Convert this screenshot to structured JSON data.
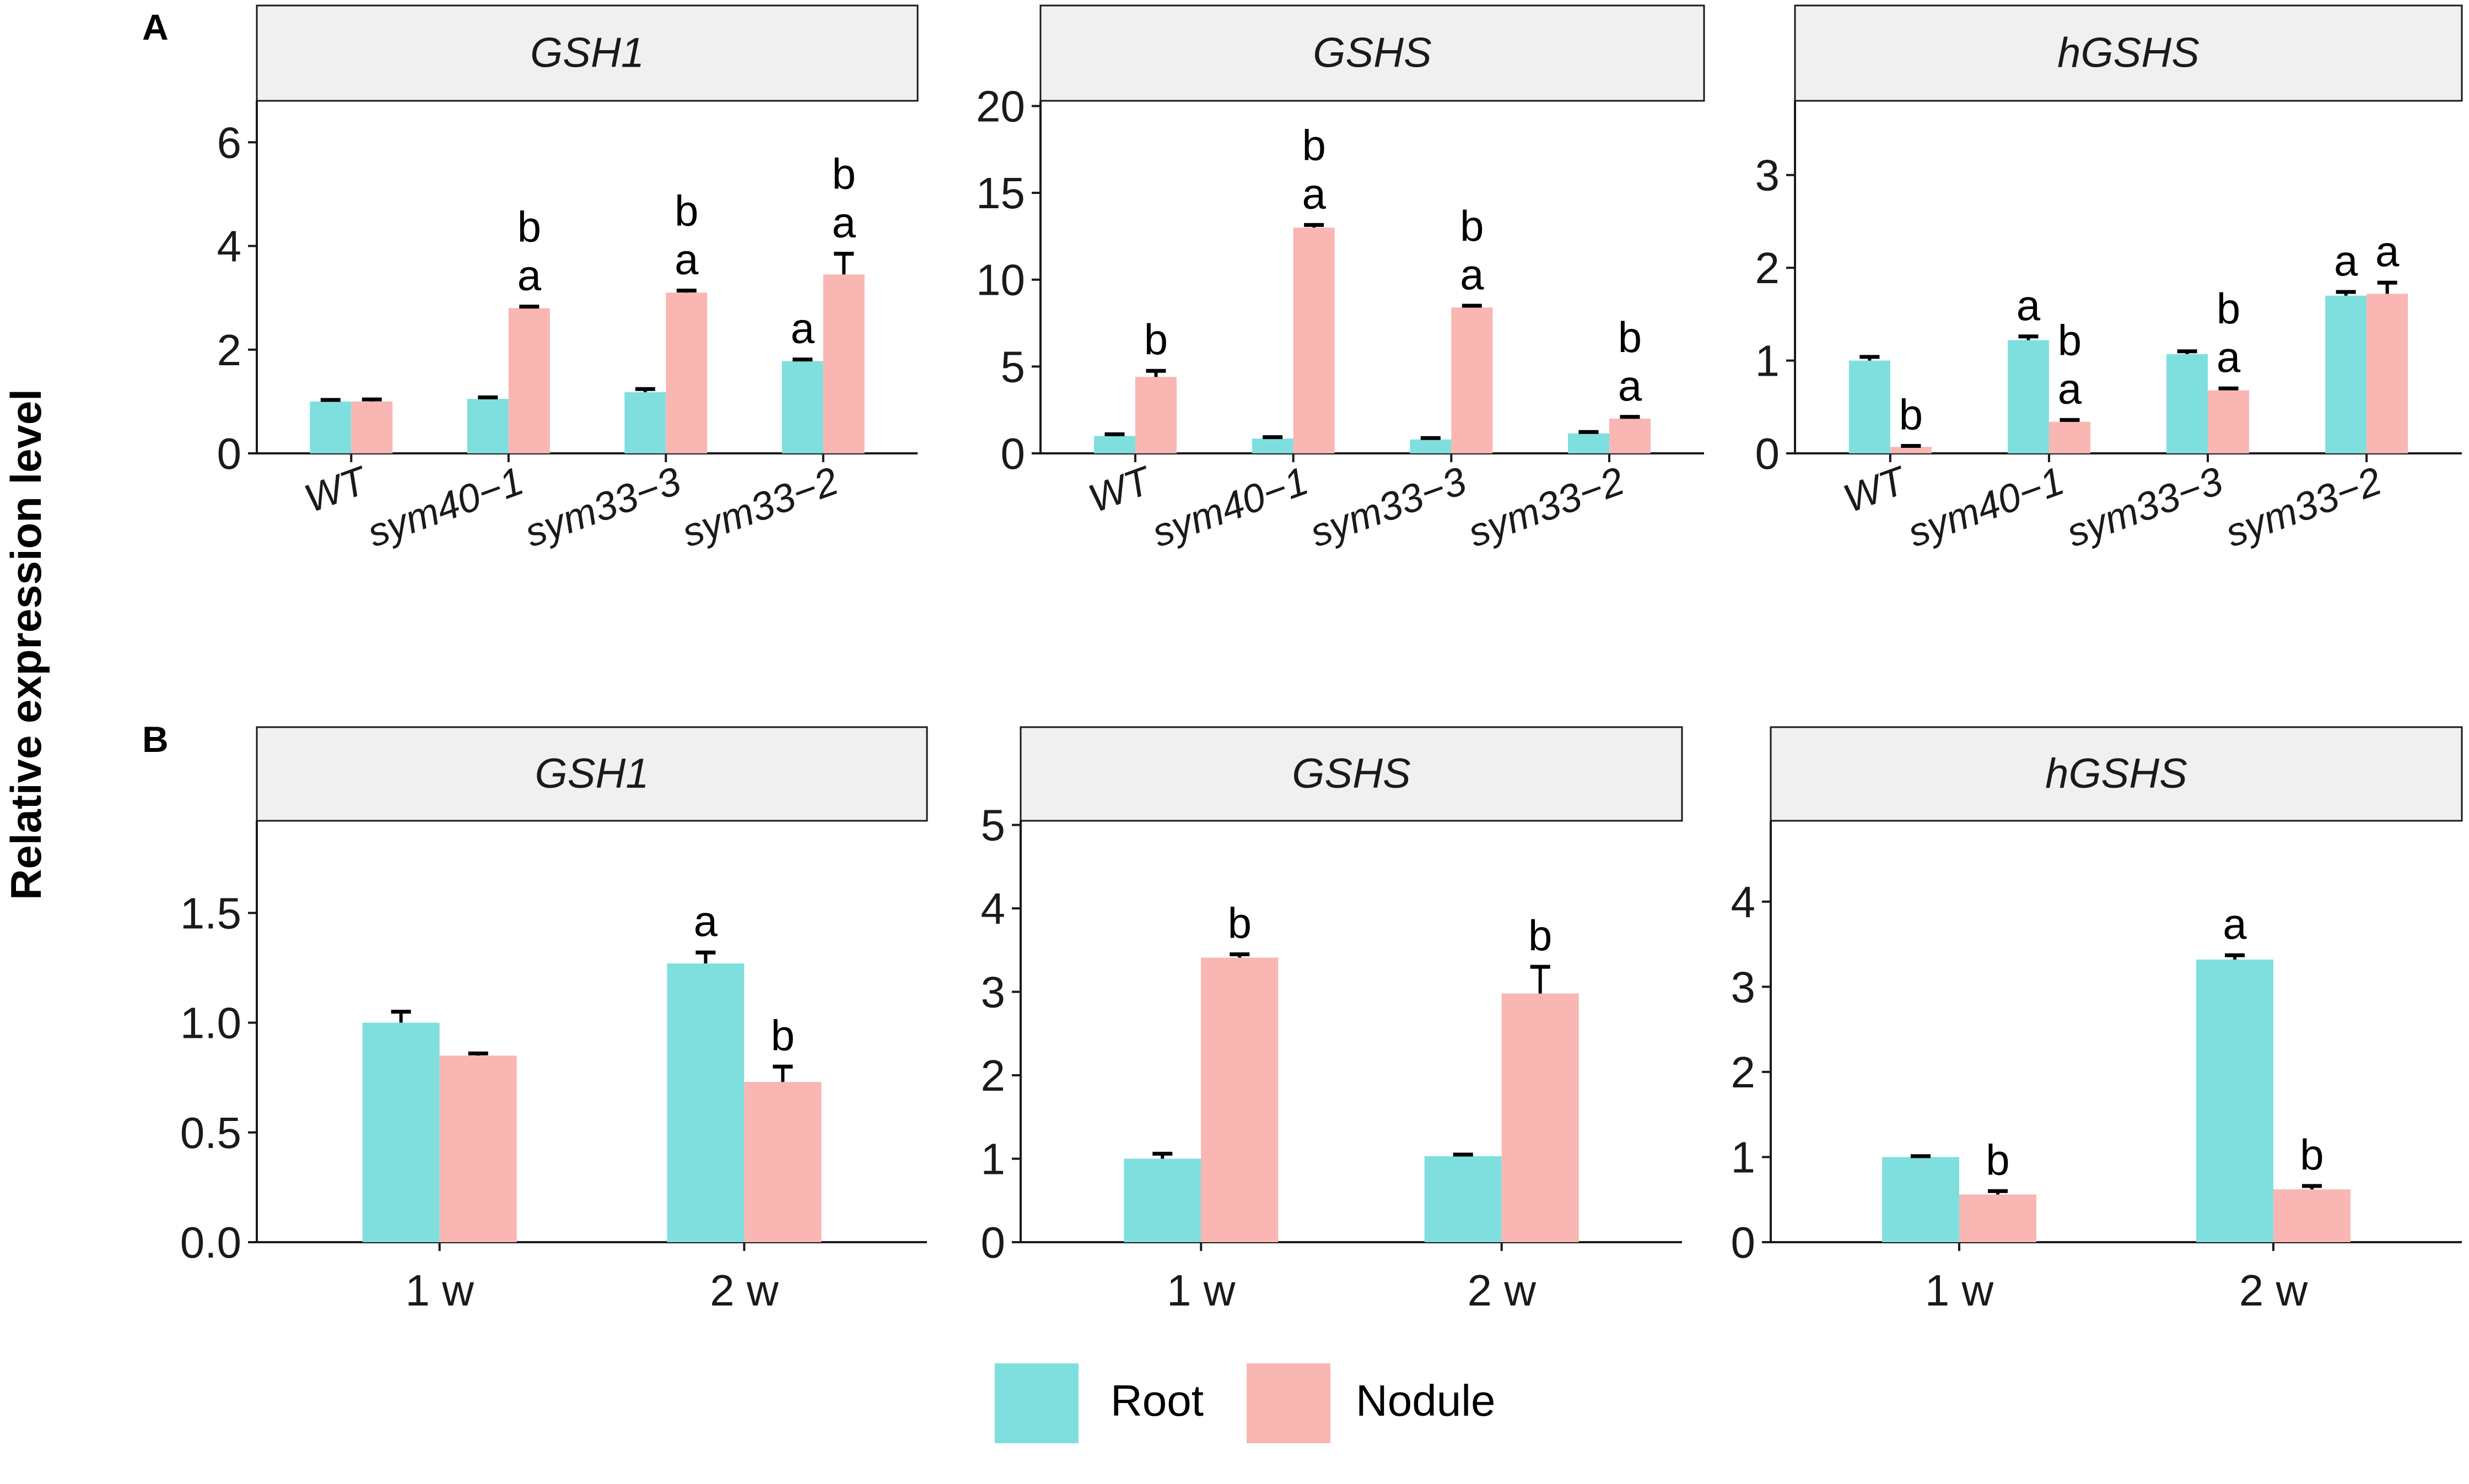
{
  "figure": {
    "y_axis_label": "Relative expression level",
    "colors": {
      "root": "#7fdfdf",
      "nodule": "#f9b6b2",
      "strip": "#f0f0f0"
    }
  },
  "legend": {
    "items": [
      {
        "label": "Root",
        "color": "#7fdfdf"
      },
      {
        "label": "Nodule",
        "color": "#f9b6b2"
      }
    ]
  },
  "panel_labels": [
    "A",
    "B"
  ],
  "chart_data": [
    {
      "type": "bar",
      "panel": "A",
      "title": "GSH1",
      "categories": [
        "WT",
        "sym40−1",
        "sym33−3",
        "sym33−2"
      ],
      "ylim": [
        0,
        6.8
      ],
      "yticks": [
        0,
        2,
        4,
        6
      ],
      "tick_decimals": 0,
      "xlabel_style": "rotated",
      "series": [
        {
          "name": "Root",
          "values": [
            1.0,
            1.05,
            1.18,
            1.78
          ],
          "errors": [
            0.03,
            0.03,
            0.06,
            0.03
          ],
          "labels": [
            [],
            [],
            [],
            [
              "a"
            ]
          ]
        },
        {
          "name": "Nodule",
          "values": [
            1.0,
            2.8,
            3.1,
            3.45
          ],
          "errors": [
            0.04,
            0.03,
            0.04,
            0.4
          ],
          "labels": [
            [],
            [
              "b",
              "a"
            ],
            [
              "b",
              "a"
            ],
            [
              "b",
              "a"
            ]
          ]
        }
      ]
    },
    {
      "type": "bar",
      "panel": "A",
      "title": "GSHS",
      "categories": [
        "WT",
        "sym40−1",
        "sym33−3",
        "sym33−2"
      ],
      "ylim": [
        0,
        20.3
      ],
      "yticks": [
        0,
        5,
        10,
        15,
        20
      ],
      "tick_decimals": 0,
      "xlabel_style": "rotated",
      "series": [
        {
          "name": "Root",
          "values": [
            1.0,
            0.85,
            0.8,
            1.15
          ],
          "errors": [
            0.1,
            0.08,
            0.08,
            0.08
          ],
          "labels": [
            [],
            [],
            [],
            []
          ]
        },
        {
          "name": "Nodule",
          "values": [
            4.4,
            13.0,
            8.4,
            2.0
          ],
          "errors": [
            0.35,
            0.15,
            0.1,
            0.1
          ],
          "labels": [
            [
              "b"
            ],
            [
              "b",
              "a"
            ],
            [
              "b",
              "a"
            ],
            [
              "b",
              "a"
            ]
          ]
        }
      ]
    },
    {
      "type": "bar",
      "panel": "A",
      "title": "hGSHS",
      "categories": [
        "WT",
        "sym40−1",
        "sym33−3",
        "sym33−2"
      ],
      "ylim": [
        0,
        3.8
      ],
      "yticks": [
        0,
        1,
        2,
        3
      ],
      "tick_decimals": 0,
      "xlabel_style": "rotated",
      "series": [
        {
          "name": "Root",
          "values": [
            1.0,
            1.22,
            1.07,
            1.7
          ],
          "errors": [
            0.04,
            0.04,
            0.03,
            0.04
          ],
          "labels": [
            [],
            [
              "a"
            ],
            [],
            [
              "a"
            ]
          ]
        },
        {
          "name": "Nodule",
          "values": [
            0.07,
            0.34,
            0.68,
            1.72
          ],
          "errors": [
            0.01,
            0.02,
            0.02,
            0.12
          ],
          "labels": [
            [
              "b"
            ],
            [
              "b",
              "a"
            ],
            [
              "b",
              "a"
            ],
            [
              "a"
            ]
          ]
        }
      ]
    },
    {
      "type": "bar",
      "panel": "B",
      "title": "GSH1",
      "categories": [
        "1 w",
        "2 w"
      ],
      "ylim": [
        0,
        1.92
      ],
      "yticks": [
        0,
        0.5,
        1.0,
        1.5
      ],
      "tick_decimals": 1,
      "xlabel_style": "plain",
      "series": [
        {
          "name": "Root",
          "values": [
            1.0,
            1.27
          ],
          "errors": [
            0.05,
            0.05
          ],
          "labels": [
            [],
            [
              "a"
            ]
          ]
        },
        {
          "name": "Nodule",
          "values": [
            0.85,
            0.73
          ],
          "errors": [
            0.01,
            0.07
          ],
          "labels": [
            [],
            [
              "b"
            ]
          ]
        }
      ]
    },
    {
      "type": "bar",
      "panel": "B",
      "title": "GSHS",
      "categories": [
        "1 w",
        "2 w"
      ],
      "ylim": [
        0,
        5.05
      ],
      "yticks": [
        0,
        1,
        2,
        3,
        4,
        5
      ],
      "tick_decimals": 0,
      "xlabel_style": "plain",
      "series": [
        {
          "name": "Root",
          "values": [
            1.0,
            1.03
          ],
          "errors": [
            0.06,
            0.02
          ],
          "labels": [
            [],
            []
          ]
        },
        {
          "name": "Nodule",
          "values": [
            3.41,
            2.98
          ],
          "errors": [
            0.04,
            0.32
          ],
          "labels": [
            [
              "b"
            ],
            [
              "b"
            ]
          ]
        }
      ]
    },
    {
      "type": "bar",
      "panel": "B",
      "title": "hGSHS",
      "categories": [
        "1 w",
        "2 w"
      ],
      "ylim": [
        0,
        4.95
      ],
      "yticks": [
        0,
        1,
        2,
        3,
        4
      ],
      "tick_decimals": 0,
      "xlabel_style": "plain",
      "series": [
        {
          "name": "Root",
          "values": [
            1.0,
            3.32
          ],
          "errors": [
            0.01,
            0.05
          ],
          "labels": [
            [],
            [
              "a"
            ]
          ]
        },
        {
          "name": "Nodule",
          "values": [
            0.56,
            0.62
          ],
          "errors": [
            0.04,
            0.04
          ],
          "labels": [
            [
              "b"
            ],
            [
              "b"
            ]
          ]
        }
      ]
    }
  ]
}
